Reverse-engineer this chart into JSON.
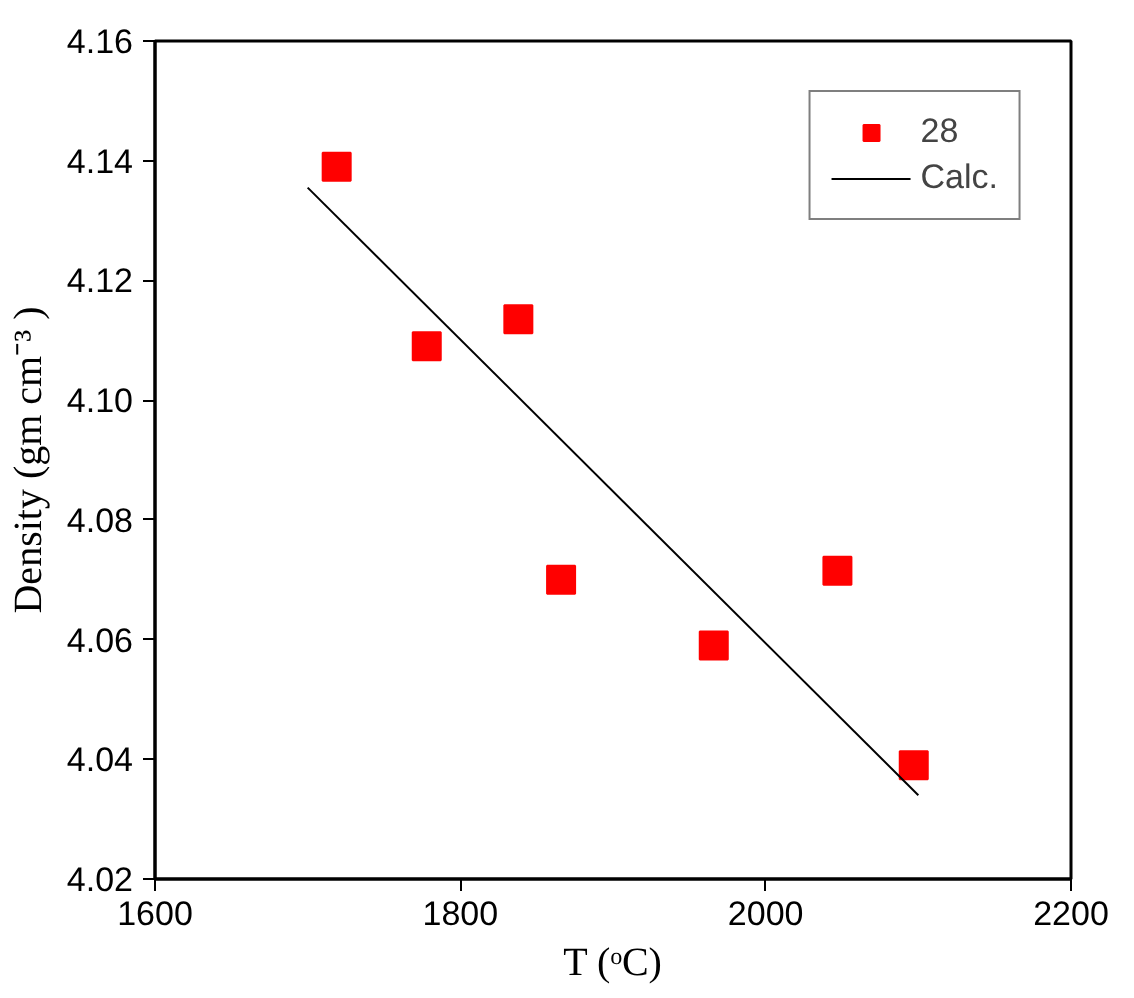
{
  "chart_data": {
    "type": "scatter",
    "xlabel": "T (ᵒC)",
    "ylabel": "Density (gm cm⁻³ )",
    "xlim": [
      1600,
      2200
    ],
    "ylim": [
      4.02,
      4.16
    ],
    "xticks": [
      1600,
      1800,
      2000,
      2200
    ],
    "yticks": [
      {
        "value": 4.02,
        "label": "4.02"
      },
      {
        "value": 4.04,
        "label": "4.04"
      },
      {
        "value": 4.06,
        "label": "4.06"
      },
      {
        "value": 4.08,
        "label": "4.08"
      },
      {
        "value": 4.1,
        "label": "4.10"
      },
      {
        "value": 4.12,
        "label": "4.12"
      },
      {
        "value": 4.14,
        "label": "4.14"
      },
      {
        "value": 4.16,
        "label": "4.16"
      }
    ],
    "grid": false,
    "legend": "top right",
    "series": [
      {
        "name": "28",
        "marker": "square",
        "color": "#ff0000",
        "x": [
          1719,
          1778,
          1838,
          1866,
          1966,
          2047,
          2097
        ],
        "values": [
          4.139,
          4.109,
          4.1135,
          4.07,
          4.059,
          4.0715,
          4.039
        ]
      },
      {
        "name": "Calc.",
        "type": "line",
        "color": "#000000",
        "line_style": "solid",
        "x": [
          1700,
          2100
        ],
        "values": [
          4.1355,
          4.034
        ]
      }
    ]
  }
}
